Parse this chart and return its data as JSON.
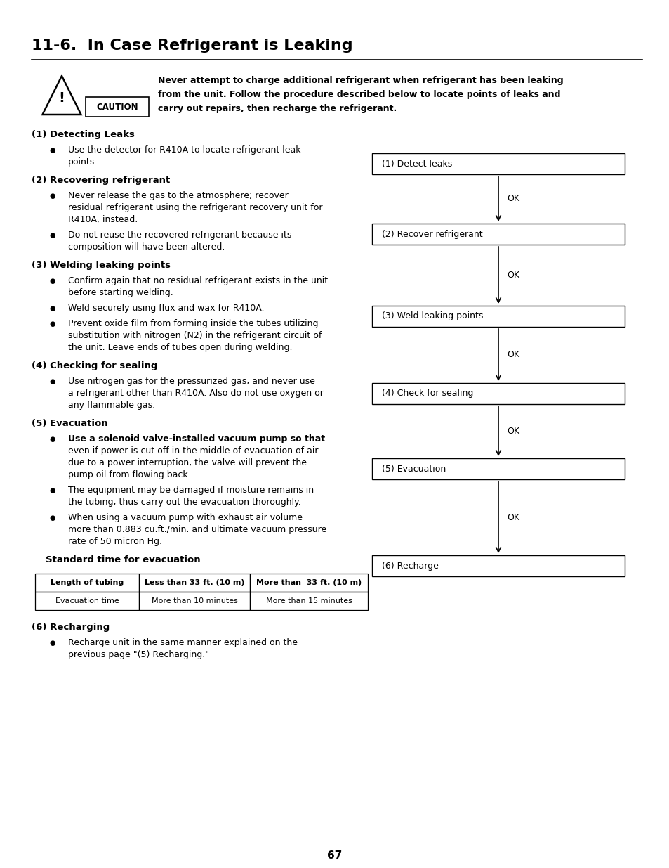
{
  "title": "11-6.  In Case Refrigerant is Leaking",
  "caution_text_line1": "Never attempt to charge additional refrigerant when refrigerant has been leaking",
  "caution_text_line2": "from the unit. Follow the procedure described below to locate points of leaks and",
  "caution_text_line3": "carry out repairs, then recharge the refrigerant.",
  "sections": [
    {
      "heading": "(1) Detecting Leaks",
      "bullets": [
        [
          "Use the detector for R410A to locate refrigerant leak",
          "points."
        ]
      ]
    },
    {
      "heading": "(2) Recovering refrigerant",
      "bullets": [
        [
          "Never release the gas to the atmosphere; recover",
          "residual refrigerant using the refrigerant recovery unit for",
          "R410A, instead."
        ],
        [
          "Do not reuse the recovered refrigerant because its",
          "composition will have been altered."
        ]
      ]
    },
    {
      "heading": "(3) Welding leaking points",
      "bullets": [
        [
          "Confirm again that no residual refrigerant exists in the unit",
          "before starting welding."
        ],
        [
          "Weld securely using flux and wax for R410A."
        ],
        [
          "Prevent oxide film from forming inside the tubes utilizing",
          "substitution with nitrogen (N2) in the refrigerant circuit of",
          "the unit. Leave ends of tubes open during welding."
        ]
      ]
    },
    {
      "heading": "(4) Checking for sealing",
      "bullets": [
        [
          "Use nitrogen gas for the pressurized gas, and never use",
          "a refrigerant other than R410A. Also do not use oxygen or",
          "any flammable gas."
        ]
      ]
    },
    {
      "heading": "(5) Evacuation",
      "bullets": [
        [
          "Use a solenoid valve-installed vacuum pump so that",
          "even if power is cut off in the middle of evacuation of air",
          "due to a power interruption, the valve will prevent the",
          "pump oil from flowing back."
        ],
        [
          "The equipment may be damaged if moisture remains in",
          "the tubing, thus carry out the evacuation thoroughly."
        ],
        [
          "When using a vacuum pump with exhaust air volume",
          "more than 0.883 cu.ft./min. and ultimate vacuum pressure",
          "rate of 50 micron Hg."
        ]
      ]
    },
    {
      "heading": "(6) Recharging",
      "bullets": [
        [
          "Recharge unit in the same manner explained on the",
          "previous page \"(5) Recharging.\""
        ]
      ]
    }
  ],
  "evacuation_header": "Standard time for evacuation",
  "table_headers": [
    "Length of tubing",
    "Less than 33 ft. (10 m)",
    "More than  33 ft. (10 m)"
  ],
  "table_row": [
    "Evacuation time",
    "More than 10 minutes",
    "More than 15 minutes"
  ],
  "flowchart_boxes": [
    "(1) Detect leaks",
    "(2) Recover refrigerant",
    "(3) Weld leaking points",
    "(4) Check for sealing",
    "(5) Evacuation",
    "(6) Recharge"
  ],
  "page_number": "67",
  "bg_color": "#ffffff",
  "text_color": "#000000",
  "bullet5_bold_line": "Use a solenoid valve-installed vacuum pump so that"
}
